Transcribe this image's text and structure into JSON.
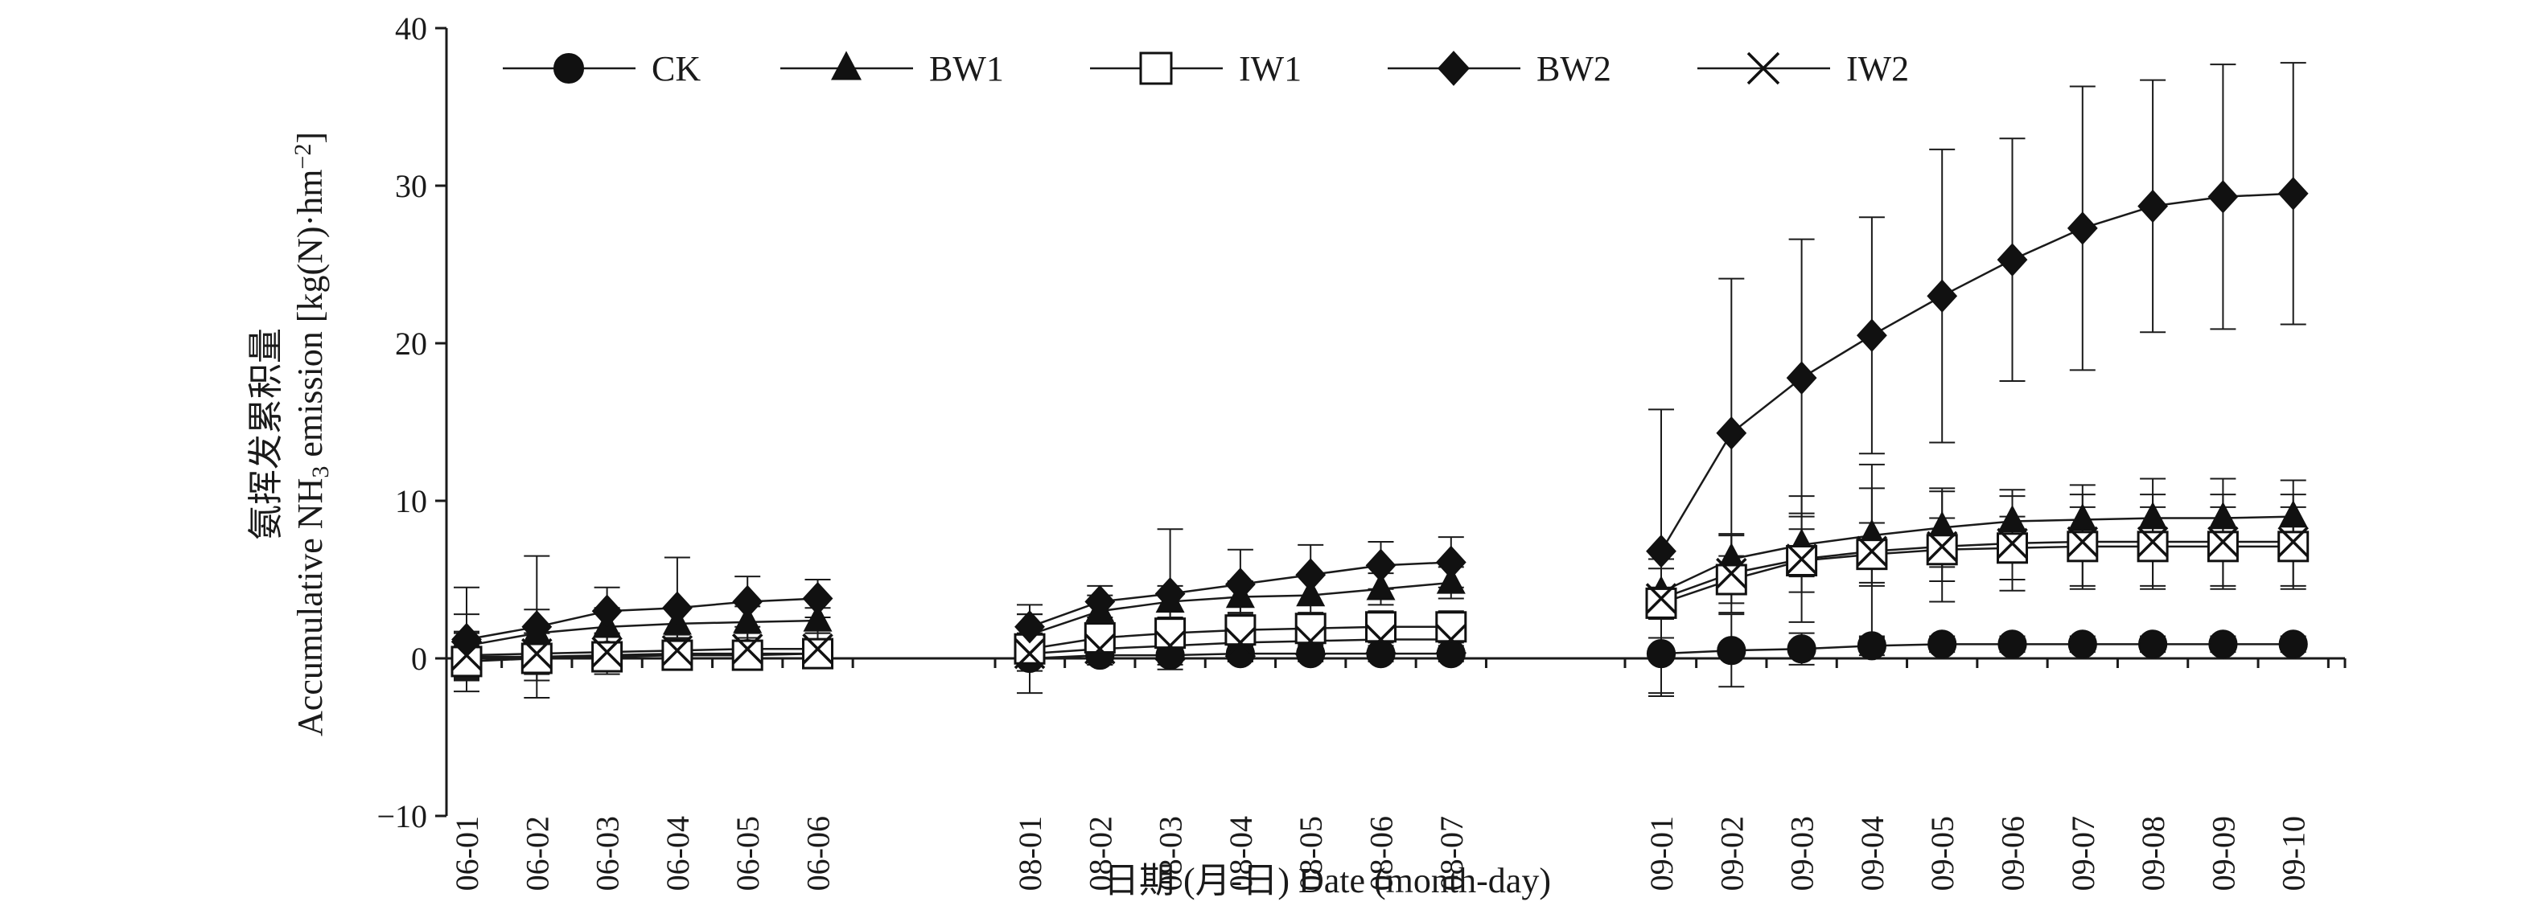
{
  "chart_data": {
    "type": "line",
    "title": "",
    "ylabel_cn": "氨挥发累积量",
    "ylabel_en_prefix": "Accumulative NH",
    "ylabel_en_sub": "3",
    "ylabel_en_mid": " emission [kg(N)·hm",
    "ylabel_en_sup": "−2",
    "ylabel_en_suffix": "]",
    "xlabel": "日期 (月-日) Date (month-day)",
    "ylim": [
      -10,
      40
    ],
    "yticks": [
      "−10",
      "0",
      "10",
      "20",
      "30",
      "40"
    ],
    "ytick_values": [
      -10,
      0,
      10,
      20,
      30,
      40
    ],
    "legend_position": "top",
    "groups": [
      {
        "categories": [
          "06-01",
          "06-02",
          "06-03",
          "06-04",
          "06-05",
          "06-06"
        ],
        "series": [
          {
            "name": "CK",
            "marker": "circle",
            "values": [
              0.1,
              0.1,
              0.2,
              0.3,
              0.3,
              0.3
            ],
            "errors": [
              1.5,
              1.5,
              1.2,
              1.0,
              1.0,
              0.8
            ]
          },
          {
            "name": "BW1",
            "marker": "triangle",
            "values": [
              0.8,
              1.6,
              2.0,
              2.2,
              2.3,
              2.4
            ],
            "errors": [
              2.0,
              1.5,
              1.2,
              1.0,
              1.0,
              0.8
            ]
          },
          {
            "name": "IW1",
            "marker": "square",
            "values": [
              -0.2,
              0.0,
              0.1,
              0.2,
              0.2,
              0.3
            ],
            "errors": [
              1.0,
              0.8,
              0.8,
              0.8,
              0.8,
              0.8
            ]
          },
          {
            "name": "BW2",
            "marker": "diamond",
            "values": [
              1.2,
              2.0,
              3.0,
              3.2,
              3.6,
              3.8
            ],
            "errors": [
              3.3,
              4.5,
              1.5,
              3.2,
              1.6,
              1.2
            ]
          },
          {
            "name": "IW2",
            "marker": "cross",
            "values": [
              0.2,
              0.3,
              0.4,
              0.5,
              0.6,
              0.6
            ],
            "errors": [
              1.5,
              1.3,
              1.2,
              1.0,
              1.0,
              1.0
            ]
          }
        ]
      },
      {
        "categories": [
          "08-01",
          "08-02",
          "08-03",
          "08-04",
          "08-05",
          "08-06",
          "08-07"
        ],
        "series": [
          {
            "name": "CK",
            "marker": "circle",
            "values": [
              0.0,
              0.2,
              0.2,
              0.3,
              0.3,
              0.3,
              0.3
            ],
            "errors": [
              0.8,
              0.6,
              0.6,
              0.5,
              0.5,
              0.5,
              0.5
            ]
          },
          {
            "name": "BW1",
            "marker": "triangle",
            "values": [
              1.5,
              3.0,
              3.6,
              3.9,
              4.0,
              4.4,
              4.8
            ],
            "errors": [
              1.3,
              1.0,
              1.0,
              1.0,
              1.2,
              1.0,
              1.0
            ]
          },
          {
            "name": "IW1",
            "marker": "square",
            "values": [
              0.6,
              1.3,
              1.6,
              1.8,
              1.9,
              2.0,
              2.0
            ],
            "errors": [
              1.0,
              1.0,
              1.0,
              1.0,
              1.0,
              1.0,
              1.0
            ]
          },
          {
            "name": "BW2",
            "marker": "diamond",
            "values": [
              2.0,
              3.6,
              4.1,
              4.7,
              5.3,
              5.9,
              6.1
            ],
            "errors": [
              1.4,
              1.0,
              4.1,
              2.2,
              1.9,
              1.5,
              1.6
            ]
          },
          {
            "name": "IW2",
            "marker": "cross",
            "values": [
              0.3,
              0.6,
              0.8,
              1.0,
              1.1,
              1.2,
              1.2
            ],
            "errors": [
              2.5,
              1.0,
              1.5,
              1.2,
              1.0,
              1.0,
              1.0
            ]
          }
        ]
      },
      {
        "categories": [
          "09-01",
          "09-02",
          "09-03",
          "09-04",
          "09-05",
          "09-06",
          "09-07",
          "09-08",
          "09-09",
          "09-10"
        ],
        "series": [
          {
            "name": "CK",
            "marker": "circle",
            "values": [
              0.3,
              0.5,
              0.6,
              0.8,
              0.9,
              0.9,
              0.9,
              0.9,
              0.9,
              0.9
            ],
            "errors": [
              2.7,
              2.3,
              1.0,
              0.6,
              0.5,
              0.5,
              0.5,
              0.5,
              0.5,
              0.5
            ]
          },
          {
            "name": "BW1",
            "marker": "triangle",
            "values": [
              4.2,
              6.3,
              7.2,
              7.8,
              8.3,
              8.7,
              8.8,
              8.9,
              8.9,
              9.0
            ],
            "errors": [
              1.5,
              1.5,
              2.0,
              3.0,
              2.5,
              2.0,
              2.2,
              2.5,
              2.5,
              2.3
            ]
          },
          {
            "name": "IW1",
            "marker": "square",
            "values": [
              3.5,
              5.0,
              6.2,
              6.6,
              6.9,
              7.0,
              7.1,
              7.1,
              7.1,
              7.1
            ],
            "errors": [
              1.0,
              1.5,
              2.0,
              2.0,
              2.0,
              2.0,
              2.5,
              2.5,
              2.5,
              2.5
            ]
          },
          {
            "name": "BW2",
            "marker": "diamond",
            "values": [
              6.8,
              14.3,
              17.8,
              20.5,
              23.0,
              25.3,
              27.3,
              28.7,
              29.3,
              29.5
            ],
            "errors": [
              9.0,
              9.8,
              8.8,
              7.5,
              9.3,
              7.7,
              9.0,
              8.0,
              8.4,
              8.3
            ]
          },
          {
            "name": "IW2",
            "marker": "cross",
            "values": [
              3.8,
              5.4,
              6.3,
              6.8,
              7.1,
              7.3,
              7.4,
              7.4,
              7.4,
              7.4
            ],
            "errors": [
              2.5,
              2.5,
              4.0,
              5.5,
              3.5,
              3.0,
              3.0,
              3.0,
              3.0,
              3.0
            ]
          }
        ]
      }
    ],
    "legend": [
      {
        "name": "CK",
        "marker": "circle"
      },
      {
        "name": "BW1",
        "marker": "triangle"
      },
      {
        "name": "IW1",
        "marker": "square"
      },
      {
        "name": "BW2",
        "marker": "diamond"
      },
      {
        "name": "IW2",
        "marker": "cross"
      }
    ],
    "colors": {
      "line": "#1a1a1a",
      "axis": "#1a1a1a",
      "marker_fill": "#111111",
      "hollow_fill": "#ffffff"
    }
  }
}
